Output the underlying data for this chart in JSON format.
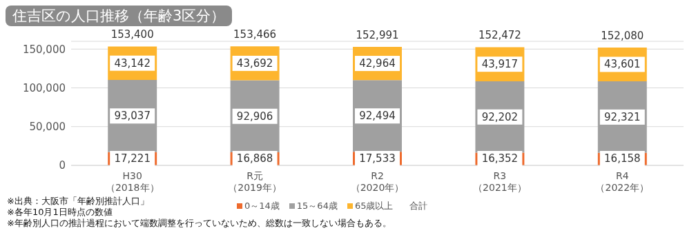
{
  "chart_data": {
    "type": "bar",
    "title": "住吉区の人口推移（年齢3区分）",
    "categories": [
      "H30（2018年）",
      "R元（2019年）",
      "R2（2020年）",
      "R3（2021年）",
      "R4（2022年）"
    ],
    "series": [
      {
        "name": "0～14歳",
        "color": "#ee6a2c",
        "values": [
          17221,
          16868,
          17533,
          16352,
          16158
        ],
        "value_labels": [
          "17,221",
          "16,868",
          "17,533",
          "16,352",
          "16,158"
        ]
      },
      {
        "name": "15～64歳",
        "color": "#a0a0a0",
        "values": [
          93037,
          92906,
          92494,
          92202,
          92321
        ],
        "value_labels": [
          "93,037",
          "92,906",
          "92,494",
          "92,202",
          "92,321"
        ]
      },
      {
        "name": "65歳以上",
        "color": "#fdb52e",
        "values": [
          43142,
          43692,
          42964,
          43917,
          43601
        ],
        "value_labels": [
          "43,142",
          "43,692",
          "42,964",
          "43,917",
          "43,601"
        ]
      }
    ],
    "stacked": true,
    "totals": [
      "153,400",
      "153,466",
      "152,991",
      "152,472",
      "152,080"
    ],
    "ylim": [
      0,
      160000
    ],
    "yticks": [
      0,
      {
        "value": 50000,
        "label": "50,000"
      },
      {
        "value": 100000,
        "label": "100,000"
      },
      {
        "value": 150000,
        "label": "150,000"
      }
    ],
    "grid": "y",
    "legend": "bottom",
    "annotations": [
      "※出典：大阪市「年齢別推計人口」",
      "※各年10月1日時点の数値",
      "※年齢別人口の推計過程において端数調整を行っていないため、総数は一致しない場合もある。",
      "合計"
    ]
  }
}
